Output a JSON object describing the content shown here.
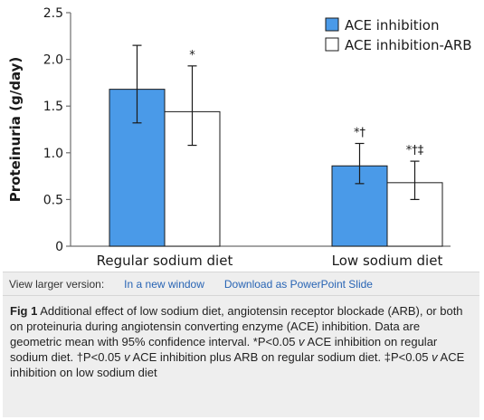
{
  "chart_data": {
    "type": "bar",
    "title": "",
    "xlabel": "",
    "ylabel": "Proteinuria (g/day)",
    "ylim": [
      0,
      2.5
    ],
    "yticks": [
      "0",
      "0.5",
      "1.0",
      "1.5",
      "2.0",
      "2.5"
    ],
    "categories": [
      "Regular sodium diet",
      "Low sodium diet"
    ],
    "legend_position": "top-right",
    "series": [
      {
        "name": "ACE inhibition",
        "color": "#4a9ae8",
        "values": [
          1.68,
          0.86
        ],
        "ci_low": [
          1.32,
          0.67
        ],
        "ci_high": [
          2.15,
          1.1
        ],
        "annotations": [
          "",
          "*†"
        ]
      },
      {
        "name": "ACE inhibition-ARB",
        "color": "#ffffff",
        "values": [
          1.44,
          0.68
        ],
        "ci_low": [
          1.08,
          0.5
        ],
        "ci_high": [
          1.93,
          0.91
        ],
        "annotations": [
          "*",
          "*†‡"
        ]
      }
    ]
  },
  "view_bar": {
    "label": "View larger version:",
    "new_window_link": "In a new window",
    "ppt_link": "Download as PowerPoint Slide"
  },
  "caption": {
    "fig_label": "Fig 1",
    "part1": " Additional effect of low sodium diet, angiotensin receptor blockade (ARB), or both on proteinuria during angiotensin converting enzyme (ACE) inhibition. Data are geometric mean with 95% confidence interval. *P<0.05 ",
    "v1": "v",
    "part2": " ACE inhibition on regular sodium diet. †P<0.05 ",
    "v2": "v",
    "part3": " ACE inhibition plus ARB on regular sodium diet. ‡P<0.05 ",
    "v3": "v",
    "part4": " ACE inhibition on low sodium diet"
  }
}
